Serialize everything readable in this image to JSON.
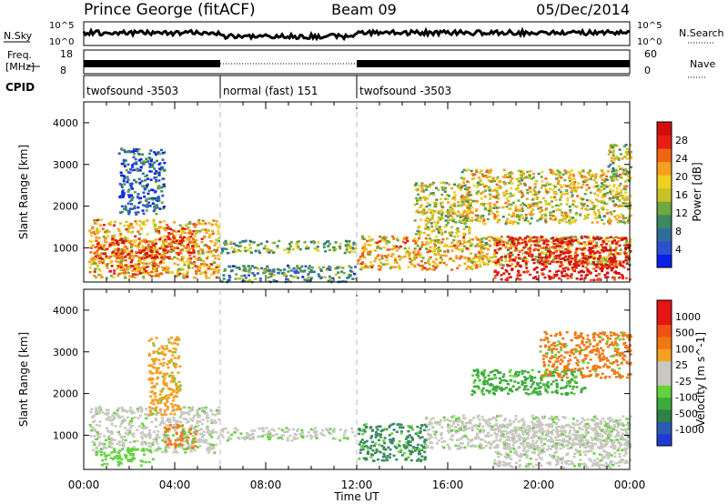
{
  "header": {
    "station": "Prince George (fitACF)",
    "beam": "Beam 09",
    "date": "05/Dec/2014"
  },
  "strips": {
    "nsky_label": "N.Sky",
    "nsearch_label": "N.Search",
    "freq_label_1": "Freq.",
    "freq_label_2": "[MHz]",
    "nave_label": "Nave",
    "cpid_label": "CPID",
    "nsky_ticks": [
      "10^5",
      "10^0"
    ],
    "nsearch_ticks": [
      "10^5",
      "10^0"
    ],
    "freq_ticks": [
      "18",
      "8"
    ],
    "nave_ticks": [
      "60",
      "0"
    ],
    "cpid_segments": [
      {
        "label": "twofsound -3503",
        "start": 0,
        "end": 6
      },
      {
        "label": "normal (fast) 151",
        "start": 6,
        "end": 12
      },
      {
        "label": "twofsound -3503",
        "start": 12,
        "end": 24
      }
    ]
  },
  "chart_data": [
    {
      "type": "heatmap",
      "quantity": "power",
      "ylabel": "Slant Range [km]",
      "ylim": [
        180,
        4500
      ],
      "yticks": [
        1000,
        2000,
        3000,
        4000
      ],
      "xlim": [
        0,
        24
      ],
      "grid": false,
      "colorbar": {
        "label": "Power [dB]",
        "ticks": [
          "4",
          "8",
          "12",
          "16",
          "20",
          "24",
          "28"
        ],
        "colors": [
          "#0a1ee6",
          "#2d50d2",
          "#2f6e9c",
          "#3c8a60",
          "#6ea840",
          "#c8c028",
          "#f0d020",
          "#f5a01e",
          "#f06414",
          "#e61e14",
          "#d20f0f"
        ]
      },
      "regions": [
        {
          "t": [
            0.2,
            5.9
          ],
          "range": [
            300,
            1700
          ],
          "level": 0.62
        },
        {
          "t": [
            0.5,
            3.8
          ],
          "range": [
            750,
            1250
          ],
          "level": 0.85
        },
        {
          "t": [
            1.0,
            3.5
          ],
          "range": [
            380,
            700
          ],
          "level": 0.75
        },
        {
          "t": [
            3.5,
            4.8
          ],
          "range": [
            900,
            1500
          ],
          "level": 0.82
        },
        {
          "t": [
            4.8,
            5.9
          ],
          "range": [
            420,
            650
          ],
          "level": 0.75
        },
        {
          "t": [
            6.0,
            11.9
          ],
          "range": [
            900,
            1200
          ],
          "level": 0.4
        },
        {
          "t": [
            6.0,
            11.9
          ],
          "range": [
            200,
            600
          ],
          "level": 0.3
        },
        {
          "t": [
            1.5,
            3.5
          ],
          "range": [
            1800,
            3400
          ],
          "level": 0.2
        },
        {
          "t": [
            12.0,
            17.5
          ],
          "range": [
            500,
            1300
          ],
          "level": 0.62
        },
        {
          "t": [
            14.5,
            17.0
          ],
          "range": [
            1300,
            2600
          ],
          "level": 0.5
        },
        {
          "t": [
            16.5,
            24.0
          ],
          "range": [
            1600,
            2900
          ],
          "level": 0.55
        },
        {
          "t": [
            17.0,
            24.0
          ],
          "range": [
            600,
            1300
          ],
          "level": 0.55
        },
        {
          "t": [
            18.0,
            24.0
          ],
          "range": [
            250,
            1300
          ],
          "level": 0.96
        },
        {
          "t": [
            23.0,
            24.0
          ],
          "range": [
            2600,
            3500
          ],
          "level": 0.45
        }
      ]
    },
    {
      "type": "heatmap",
      "quantity": "velocity",
      "ylabel": "Slant Range [km]",
      "xlabel": "Time UT",
      "ylim": [
        180,
        4500
      ],
      "yticks": [
        1000,
        2000,
        3000,
        4000
      ],
      "xlim": [
        0,
        24
      ],
      "xticks": [
        "00:00",
        "04:00",
        "08:00",
        "12:00",
        "16:00",
        "20:00",
        "00:00"
      ],
      "grid": false,
      "colorbar": {
        "label": "Velocity [m s^-1]",
        "ticks": [
          "1000",
          "500",
          "100",
          "25",
          "-25",
          "-100",
          "-500",
          "-1000"
        ],
        "colors": [
          "#1e3cd2",
          "#2d5ab4",
          "#2d8246",
          "#3caa3c",
          "#64d23c",
          "#c8c8c0",
          "#c8c8c0",
          "#f5a01e",
          "#f07814",
          "#f05014",
          "#e61414",
          "#e61414"
        ]
      },
      "regions": [
        {
          "t": [
            0.2,
            5.9
          ],
          "range": [
            600,
            1700
          ],
          "color": "#c8c8c0"
        },
        {
          "t": [
            3.5,
            5.0
          ],
          "range": [
            700,
            1300
          ],
          "color": "#f07814"
        },
        {
          "t": [
            2.8,
            4.2
          ],
          "range": [
            1500,
            3400
          ],
          "color": "#f5a01e"
        },
        {
          "t": [
            0.5,
            3.0
          ],
          "range": [
            300,
            700
          ],
          "color": "#64d23c"
        },
        {
          "t": [
            6.0,
            11.9
          ],
          "range": [
            900,
            1200
          ],
          "color": "#c8c8c0"
        },
        {
          "t": [
            12.0,
            15.0
          ],
          "range": [
            400,
            1300
          ],
          "color": "#3c8a60"
        },
        {
          "t": [
            15.0,
            24.0
          ],
          "range": [
            700,
            1500
          ],
          "color": "#c8c8c0"
        },
        {
          "t": [
            17.0,
            22.0
          ],
          "range": [
            2000,
            2600
          ],
          "color": "#3caa3c"
        },
        {
          "t": [
            20.0,
            24.0
          ],
          "range": [
            2400,
            3500
          ],
          "color": "#f07814"
        },
        {
          "t": [
            18.0,
            24.0
          ],
          "range": [
            250,
            1300
          ],
          "color": "#c8c8c0"
        }
      ]
    }
  ]
}
